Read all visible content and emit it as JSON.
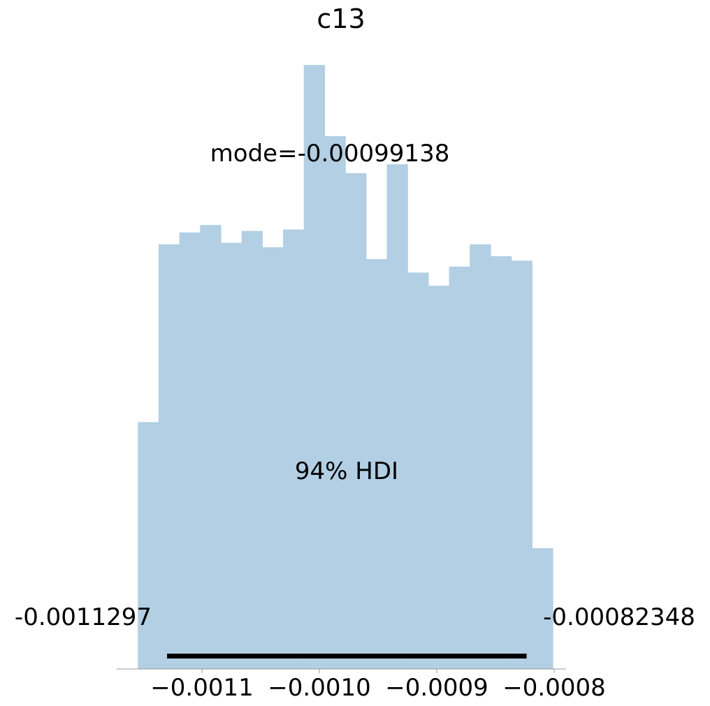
{
  "chart_data": {
    "type": "bar",
    "title": "c13",
    "xlabel": "",
    "ylabel": "",
    "xlim": [
      -0.00116,
      -0.00079
    ],
    "ylim": [
      0,
      1.0
    ],
    "bins": {
      "start": -0.00115462,
      "width": 1.76725e-05,
      "heights": [
        0.4087,
        0.7031,
        0.7227,
        0.735,
        0.7056,
        0.7252,
        0.6982,
        0.7276,
        1.0,
        0.8821,
        0.8208,
        0.6786,
        0.8355,
        0.6563,
        0.6344,
        0.6662,
        0.7031,
        0.6834,
        0.676,
        0.2
      ]
    },
    "bar_color": "#b2cfe4",
    "x_ticks": [
      {
        "value": -0.0011,
        "label": "−0.0011"
      },
      {
        "value": -0.001,
        "label": "−0.0010"
      },
      {
        "value": -0.0009,
        "label": "−0.0009"
      },
      {
        "value": -0.0008,
        "label": "−0.0008"
      }
    ],
    "mode_text": "mode=-0.00099138",
    "hdi": {
      "label": "94% HDI",
      "low": -0.0011297,
      "high": -0.00082348,
      "low_label": "-0.0011297",
      "high_label": "-0.00082348"
    },
    "grid": false
  }
}
